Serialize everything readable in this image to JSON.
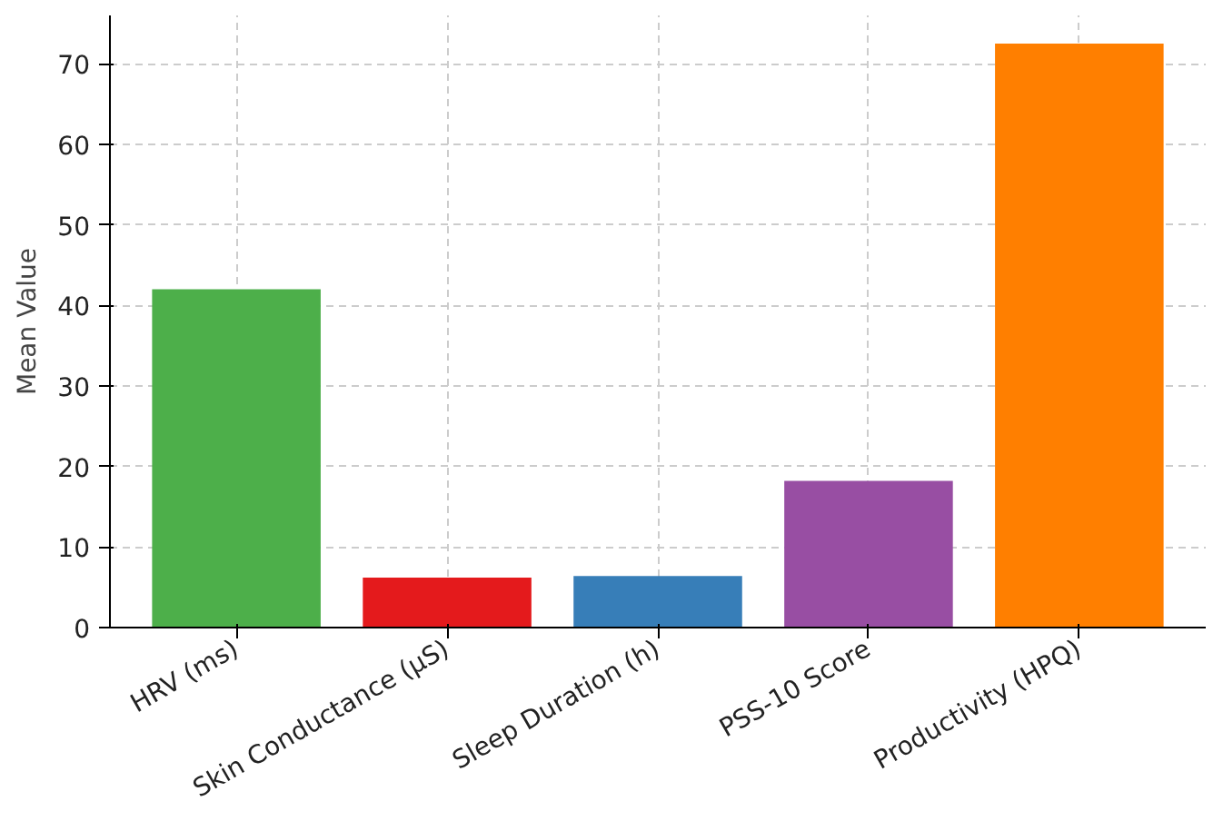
{
  "chart_data": {
    "type": "bar",
    "ylabel": "Mean Value",
    "categories": [
      "HRV (ms)",
      "Skin Conductance (µS)",
      "Sleep Duration (h)",
      "PSS-10 Score",
      "Productivity (HPQ)"
    ],
    "values": [
      42,
      6.2,
      6.4,
      18.2,
      72.5
    ],
    "colors": [
      "#4daf4a",
      "#e41a1c",
      "#377eb8",
      "#984ea3",
      "#ff7f00"
    ],
    "ylim": [
      0,
      76
    ],
    "yticks": [
      0,
      10,
      20,
      30,
      40,
      50,
      60,
      70
    ],
    "grid": true
  }
}
